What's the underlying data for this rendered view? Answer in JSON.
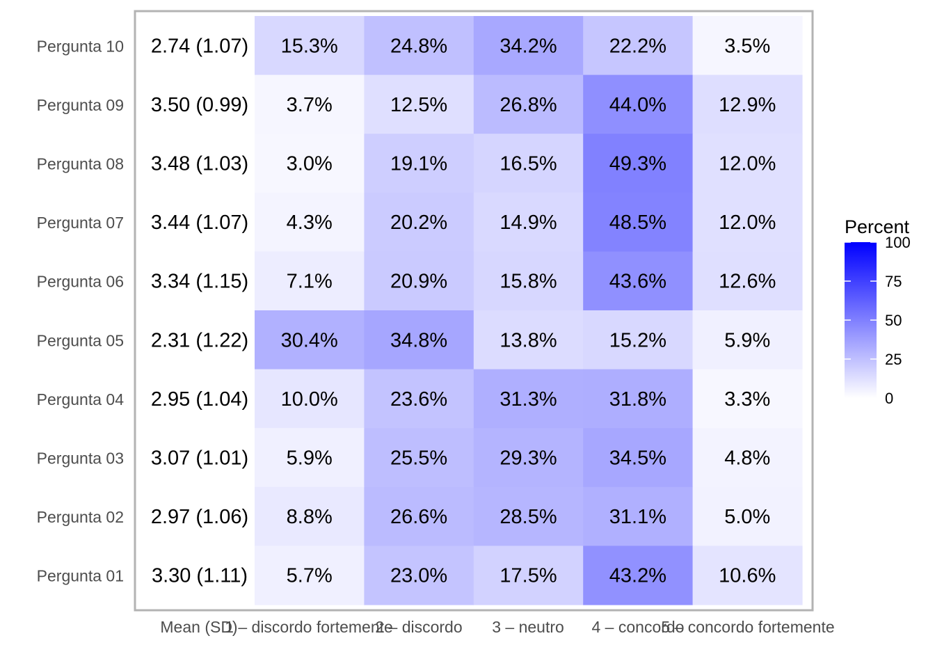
{
  "chart_data": {
    "type": "heatmap",
    "rows": [
      "Pergunta 10",
      "Pergunta 09",
      "Pergunta 08",
      "Pergunta 07",
      "Pergunta 06",
      "Pergunta 05",
      "Pergunta 04",
      "Pergunta 03",
      "Pergunta 02",
      "Pergunta 01"
    ],
    "columns": [
      "Mean (SD)",
      "1 – discordo fortemente",
      "2 – discordo",
      "3 – neutro",
      "4 – concordo",
      "5 – concordo fortemente"
    ],
    "mean_sd": [
      "2.74 (1.07)",
      "3.50 (0.99)",
      "3.48 (1.03)",
      "3.44 (1.07)",
      "3.34 (1.15)",
      "2.31 (1.22)",
      "2.95 (1.04)",
      "3.07 (1.01)",
      "2.97 (1.06)",
      "3.30 (1.11)"
    ],
    "values": [
      [
        15.3,
        24.8,
        34.2,
        22.2,
        3.5
      ],
      [
        3.7,
        12.5,
        26.8,
        44.0,
        12.9
      ],
      [
        3.0,
        19.1,
        16.5,
        49.3,
        12.0
      ],
      [
        4.3,
        20.2,
        14.9,
        48.5,
        12.0
      ],
      [
        7.1,
        20.9,
        15.8,
        43.6,
        12.6
      ],
      [
        30.4,
        34.8,
        13.8,
        15.2,
        5.9
      ],
      [
        10.0,
        23.6,
        31.3,
        31.8,
        3.3
      ],
      [
        5.9,
        25.5,
        29.3,
        34.5,
        4.8
      ],
      [
        8.8,
        26.6,
        28.5,
        31.1,
        5.0
      ],
      [
        5.7,
        23.0,
        17.5,
        43.2,
        10.6
      ]
    ],
    "legend": {
      "title": "Percent",
      "ticks": [
        0,
        25,
        50,
        75,
        100
      ],
      "range": [
        0,
        100
      ],
      "low_color": "#ffffff",
      "high_color": "#0000ff"
    },
    "grid": false
  }
}
